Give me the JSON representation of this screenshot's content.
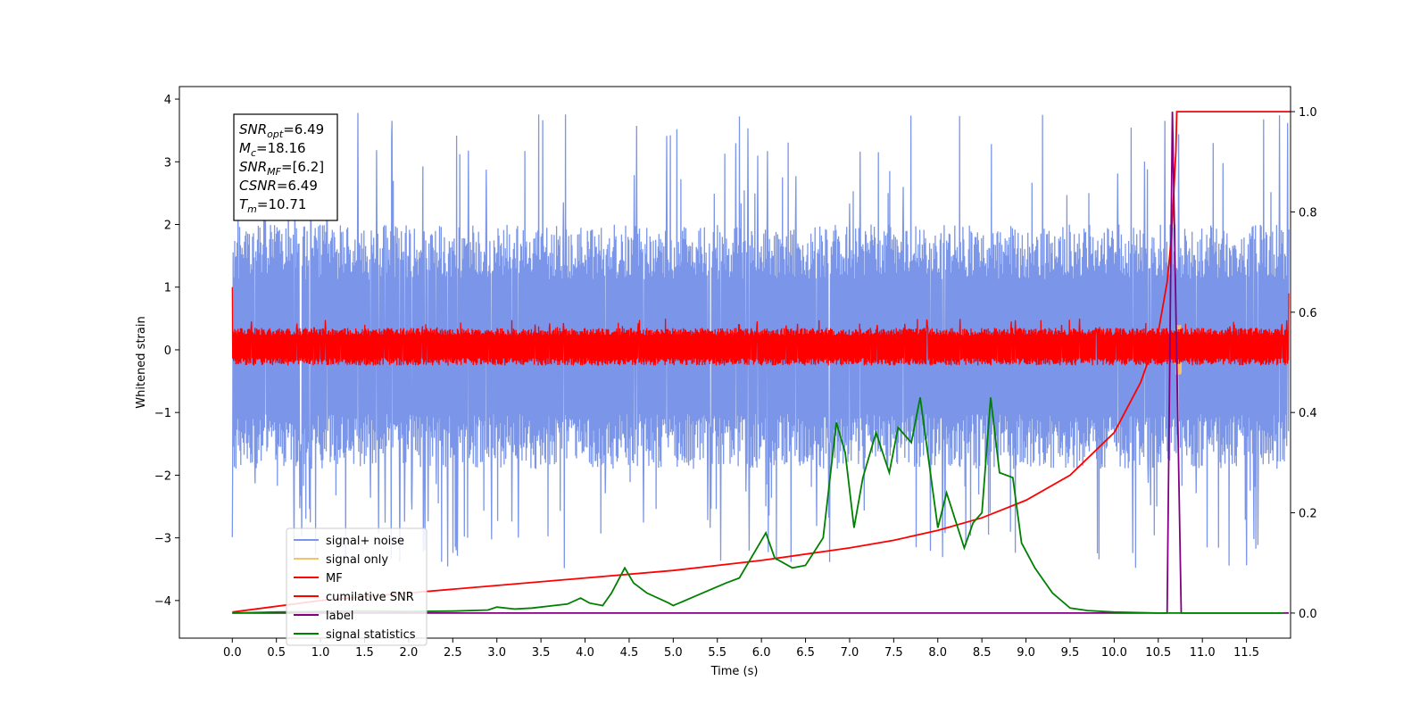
{
  "chart_data": {
    "type": "line",
    "xlabel": "Time (s)",
    "ylabel": "Whitened strain",
    "xlim": [
      -0.6,
      12.0
    ],
    "ylim": [
      -4.6,
      4.2
    ],
    "ylim_right": [
      -0.05,
      1.05
    ],
    "x_ticks": [
      "0.0",
      "0.5",
      "1.0",
      "1.5",
      "2.0",
      "2.5",
      "3.0",
      "3.5",
      "4.0",
      "4.5",
      "5.0",
      "5.5",
      "6.0",
      "6.5",
      "7.0",
      "7.5",
      "8.0",
      "8.5",
      "9.0",
      "9.5",
      "10.0",
      "10.5",
      "11.0",
      "11.5"
    ],
    "y_ticks_left": [
      "4",
      "3",
      "2",
      "1",
      "0",
      "−1",
      "−2",
      "−3",
      "−4"
    ],
    "y_ticks_right": [
      "1.0",
      "0.8",
      "0.6",
      "0.4",
      "0.2",
      "0.0"
    ],
    "grid": false,
    "legend_position": "lower-left",
    "annotation": {
      "lines": [
        {
          "label": "SNR",
          "sub": "opt",
          "value": "=6.49"
        },
        {
          "label": "M",
          "sub": "c",
          "value": "=18.16"
        },
        {
          "label": "SNR",
          "sub": "MF",
          "value": "=[6.2]"
        },
        {
          "label": "CSNR",
          "sub": "",
          "value": "=6.49"
        },
        {
          "label": "T",
          "sub": "m",
          "value": "=10.71"
        }
      ]
    },
    "series": [
      {
        "name": "signal+ noise",
        "color": "#7b96e8",
        "axis": "left",
        "kind": "noise",
        "band": [
          -1.9,
          2.0
        ],
        "spike_low": -3.5,
        "spike_high": 3.8
      },
      {
        "name": "signal only",
        "color": "#f5c26b",
        "axis": "left",
        "kind": "chirp",
        "merger_time": 10.71,
        "peak": 0.4
      },
      {
        "name": "MF",
        "color": "#ff0000",
        "axis": "left",
        "kind": "noise",
        "band": [
          -0.25,
          0.35
        ],
        "spike_high": 1.0
      },
      {
        "name": "cumilative SNR",
        "color": "#ff0000",
        "axis": "right",
        "x": [
          0.0,
          1.0,
          2.0,
          3.0,
          4.0,
          5.0,
          6.0,
          7.0,
          7.5,
          8.0,
          8.5,
          9.0,
          9.5,
          10.0,
          10.3,
          10.5,
          10.6,
          10.65,
          10.7,
          10.71,
          12.0
        ],
        "y": [
          0.002,
          0.025,
          0.04,
          0.055,
          0.07,
          0.085,
          0.105,
          0.13,
          0.145,
          0.165,
          0.19,
          0.225,
          0.275,
          0.36,
          0.46,
          0.56,
          0.66,
          0.75,
          0.92,
          1.0,
          1.0
        ]
      },
      {
        "name": "label",
        "color": "#800080",
        "axis": "right",
        "x": [
          0.0,
          10.6,
          10.66,
          10.76,
          11.98
        ],
        "y": [
          0.0,
          0.0,
          1.0,
          0.0,
          0.0
        ]
      },
      {
        "name": "signal statistics",
        "color": "#008000",
        "axis": "right",
        "x": [
          0.0,
          0.5,
          1.0,
          1.5,
          2.0,
          2.5,
          2.9,
          3.0,
          3.2,
          3.4,
          3.6,
          3.8,
          3.95,
          4.05,
          4.2,
          4.3,
          4.45,
          4.55,
          4.7,
          4.95,
          5.0,
          5.2,
          5.4,
          5.6,
          5.75,
          5.95,
          6.05,
          6.15,
          6.35,
          6.5,
          6.7,
          6.85,
          6.95,
          7.05,
          7.15,
          7.3,
          7.45,
          7.55,
          7.7,
          7.8,
          7.9,
          8.0,
          8.1,
          8.3,
          8.4,
          8.5,
          8.6,
          8.7,
          8.85,
          8.95,
          9.1,
          9.3,
          9.5,
          9.7,
          10.0,
          10.5,
          11.0,
          11.5,
          11.92
        ],
        "y": [
          0.0,
          0.002,
          0.003,
          0.004,
          0.003,
          0.004,
          0.006,
          0.012,
          0.008,
          0.01,
          0.014,
          0.018,
          0.03,
          0.02,
          0.015,
          0.04,
          0.09,
          0.06,
          0.04,
          0.02,
          0.015,
          0.03,
          0.045,
          0.06,
          0.07,
          0.13,
          0.16,
          0.11,
          0.09,
          0.095,
          0.15,
          0.38,
          0.32,
          0.17,
          0.27,
          0.36,
          0.28,
          0.37,
          0.34,
          0.43,
          0.3,
          0.17,
          0.24,
          0.13,
          0.18,
          0.2,
          0.43,
          0.28,
          0.27,
          0.14,
          0.09,
          0.04,
          0.01,
          0.005,
          0.002,
          0.0,
          0.0,
          0.0,
          0.0
        ]
      }
    ]
  }
}
